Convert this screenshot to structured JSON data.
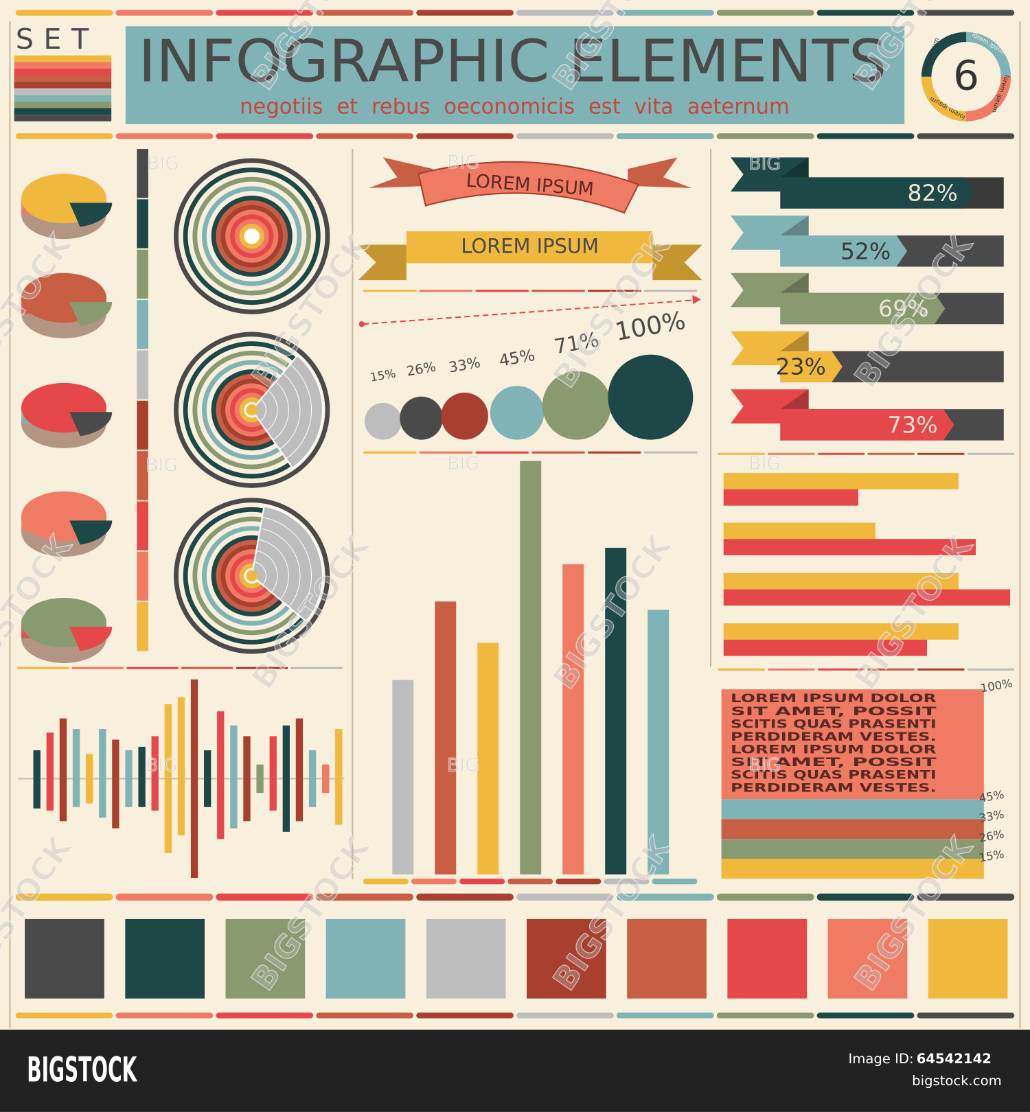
{
  "header": {
    "set": "SET",
    "title": "INFOGRAPHIC ELEMENTS",
    "subtitle": "negotiis et rebus oeconomicis est vita aeternum",
    "badge_number": "6",
    "badge_text": "lorem ipsum"
  },
  "ribbons": [
    "LOREM IPSUM",
    "LOREM IPSUM"
  ],
  "circles": {
    "values": [
      15,
      26,
      33,
      45,
      71,
      100
    ],
    "value_labels": [
      "15%",
      "26%",
      "33%",
      "45%",
      "71%",
      "100%"
    ],
    "colors": [
      "#bdbdbd",
      "#4a4a4a",
      "#a8402f",
      "#80b3b5",
      "#8a9a70",
      "#1e4848"
    ]
  },
  "arrow_bars": {
    "values": [
      82,
      52,
      69,
      23,
      73
    ],
    "value_labels": [
      "82%",
      "52%",
      "69%",
      "23%",
      "73%"
    ],
    "colors": [
      "#1e4848",
      "#80b3b5",
      "#8a9a70",
      "#f0b93e",
      "#e6474a"
    ]
  },
  "column_chart": {
    "values": [
      47,
      66,
      56,
      100,
      75,
      79,
      64
    ],
    "colors": [
      "#bdbdbd",
      "#c85e43",
      "#f0b93e",
      "#8a9a70",
      "#ef7b64",
      "#1e4848",
      "#80b3b5"
    ]
  },
  "paired_bars": {
    "series": [
      {
        "color": "#f0b93e",
        "values": [
          82,
          53,
          82,
          82
        ]
      },
      {
        "color": "#e6474a",
        "values": [
          47,
          88,
          100,
          71
        ]
      }
    ]
  },
  "equalizer": {
    "up": [
      40,
      65,
      85,
      70,
      35,
      70,
      55,
      40,
      45,
      60,
      105,
      115,
      140,
      40,
      95,
      75,
      60,
      20,
      60,
      75,
      85,
      40,
      20,
      70
    ],
    "down": [
      42,
      45,
      60,
      40,
      35,
      55,
      70,
      40,
      40,
      45,
      105,
      80,
      140,
      40,
      85,
      70,
      60,
      20,
      45,
      75,
      60,
      40,
      20,
      65
    ]
  },
  "text_box": {
    "lines": [
      "LOREM IPSUM DOLOR",
      "SIT AMET, POSSIT",
      "SCITIS QUAS PRASENTI",
      "PERDIDERAM VESTES.",
      "LOREM IPSUM DOLOR",
      "SIT AMET, POSSIT",
      "SCITIS QUAS PRASENTI",
      "PERDIDERAM VESTES."
    ],
    "top_label": "100%",
    "stripe_labels": [
      "45%",
      "33%",
      "26%",
      "15%"
    ]
  },
  "palette": [
    "#4a4a4a",
    "#1e4848",
    "#8a9a70",
    "#80b3b5",
    "#bdbdbd",
    "#a8402f",
    "#c85e43",
    "#e6474a",
    "#ef7b64",
    "#f0b93e"
  ],
  "watermark": {
    "short": "BIG",
    "long": "BIGSTOCK"
  },
  "footer": {
    "brand": "BIGSTOCK",
    "id_label": "Image ID:",
    "id": "64542142",
    "site": "bigstock.com"
  }
}
